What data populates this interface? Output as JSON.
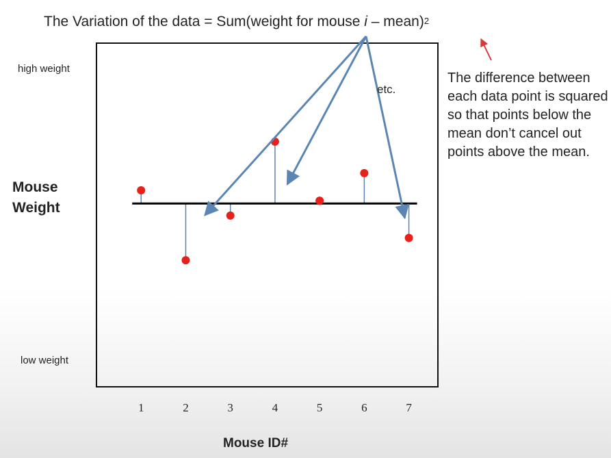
{
  "title": {
    "prefix": "The Variation of the data = Sum(weight for mouse ",
    "italic": "i",
    "suffix": " – mean)",
    "exponent": "2"
  },
  "note": "The difference between each data point is squared so that points below the mean don’t cancel out points above the mean.",
  "arrow_label": "etc.",
  "colors": {
    "point": "#e8201b",
    "residual": "#5b86b3",
    "mean_line": "#000000",
    "pointer": "#d63a3a"
  },
  "chart_data": {
    "type": "scatter",
    "xlabel": "Mouse ID#",
    "ylabel": "Mouse Weight",
    "y_top_label": "high weight",
    "y_bottom_label": "low weight",
    "x": [
      1,
      2,
      3,
      4,
      5,
      6,
      7
    ],
    "tick_labels": [
      "1",
      "2",
      "3",
      "4",
      "5",
      "6",
      "7"
    ],
    "values": [
      0.23,
      -0.99,
      -0.21,
      1.08,
      0.05,
      0.53,
      -0.6
    ],
    "mean": 0,
    "xlim": [
      0,
      7.65
    ],
    "ylim": [
      -3.2,
      2.8
    ],
    "grid": false
  }
}
